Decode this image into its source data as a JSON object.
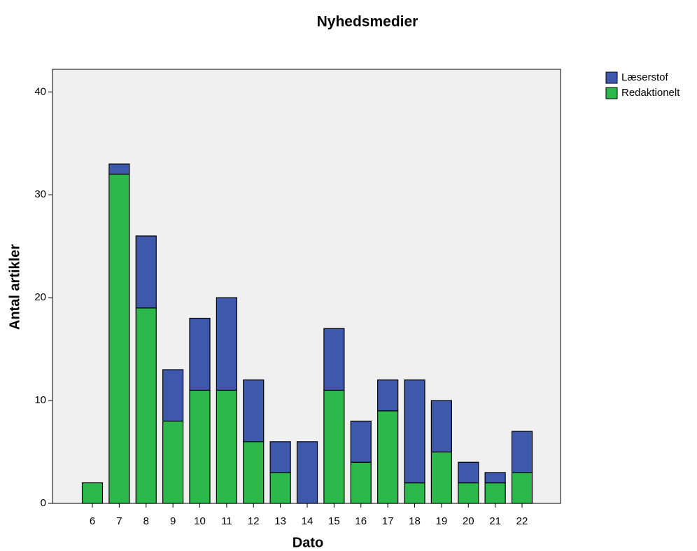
{
  "chart_data": {
    "type": "stacked_bar",
    "title": "Nyhedsmedier",
    "x_label": "Dato",
    "y_label": "Antal artikler",
    "categories": [
      "6",
      "7",
      "8",
      "9",
      "10",
      "11",
      "12",
      "13",
      "14",
      "15",
      "16",
      "17",
      "18",
      "19",
      "20",
      "21",
      "22"
    ],
    "series": [
      {
        "name": "Redaktionelt",
        "color": "#2db84b",
        "values": [
          2,
          32,
          19,
          8,
          11,
          11,
          6,
          3,
          0,
          11,
          4,
          9,
          2,
          5,
          2,
          2,
          3
        ]
      },
      {
        "name": "Læserstof",
        "color": "#3e58ac",
        "values": [
          0,
          1,
          7,
          5,
          7,
          9,
          6,
          3,
          6,
          6,
          4,
          3,
          10,
          5,
          2,
          1,
          4
        ]
      }
    ],
    "ylim": [
      0,
      42.2
    ],
    "yticks": [
      0,
      10,
      20,
      30,
      40
    ],
    "legend": "right"
  }
}
